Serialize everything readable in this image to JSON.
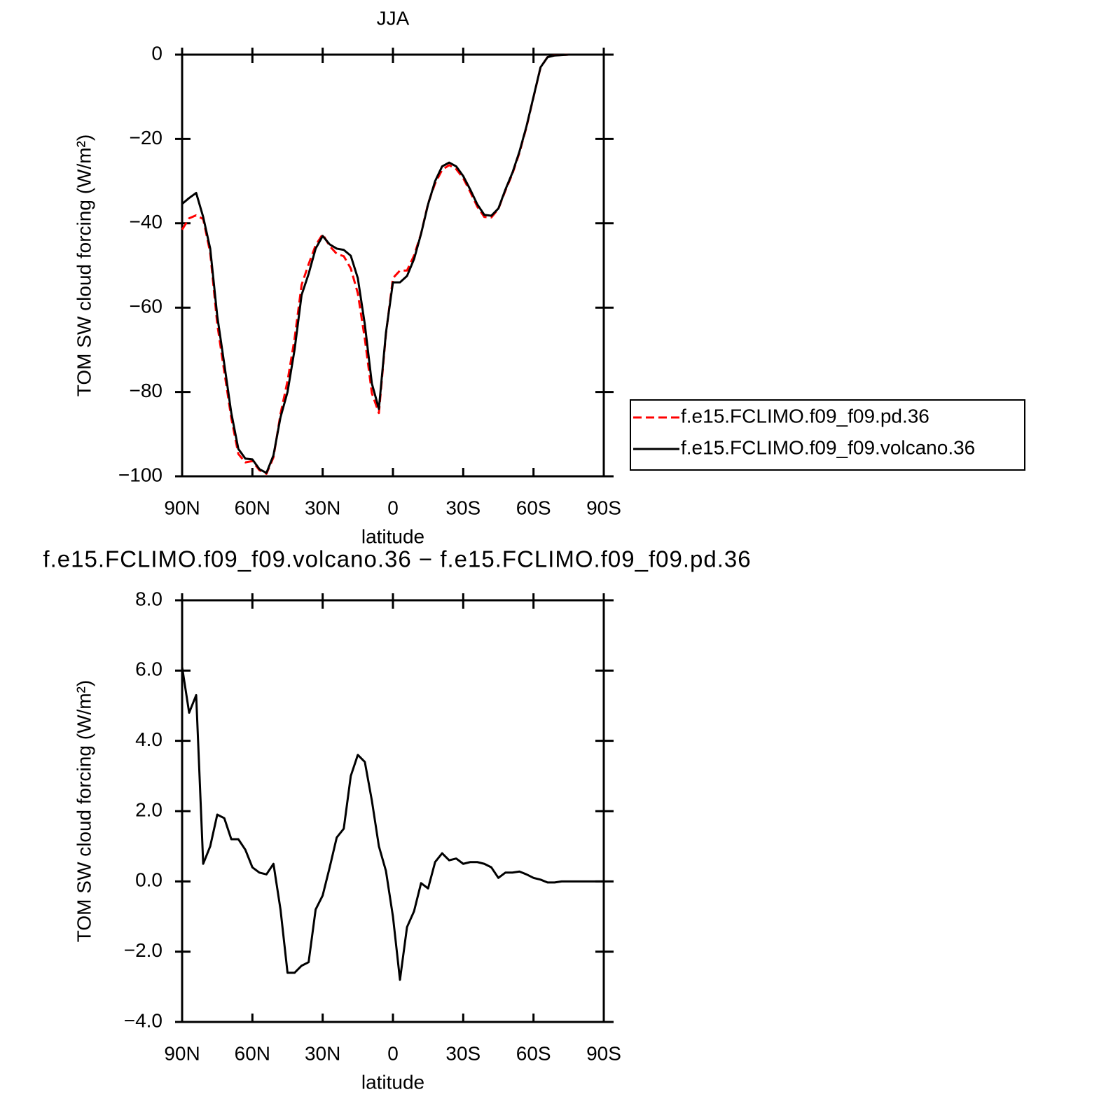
{
  "chart_data": [
    {
      "type": "line",
      "title": "JJA",
      "x_label": "latitude",
      "y_label": "TOM SW cloud forcing (W/m²)",
      "x": [
        90,
        87,
        84,
        81,
        78,
        75,
        72,
        69,
        66,
        63,
        60,
        57,
        54,
        51,
        48,
        45,
        42,
        39,
        36,
        33,
        30,
        27,
        24,
        21,
        18,
        15,
        12,
        9,
        6,
        3,
        0,
        -3,
        -6,
        -9,
        -12,
        -15,
        -18,
        -21,
        -24,
        -27,
        -30,
        -33,
        -36,
        -39,
        -42,
        -45,
        -48,
        -51,
        -54,
        -57,
        -60,
        -63,
        -66,
        -69,
        -72,
        -75,
        -78,
        -81,
        -84,
        -87,
        -90
      ],
      "xlim": [
        90,
        -90
      ],
      "xticks": [
        {
          "value": 90,
          "label": "90N"
        },
        {
          "value": 60,
          "label": "60N"
        },
        {
          "value": 30,
          "label": "30N"
        },
        0,
        {
          "value": -30,
          "label": "30S"
        },
        {
          "value": -60,
          "label": "60S"
        },
        {
          "value": -90,
          "label": "90S"
        }
      ],
      "ylim": [
        -100,
        0
      ],
      "yticks": [
        0,
        {
          "value": -20,
          "label": "−20"
        },
        {
          "value": -40,
          "label": "−40"
        },
        {
          "value": -60,
          "label": "−60"
        },
        {
          "value": -80,
          "label": "−80"
        },
        {
          "value": -100,
          "label": "−100"
        }
      ],
      "legend": "right",
      "series": [
        {
          "name": "f.e15.FCLIMO.f09_f09.pd.36",
          "color": "#ff0000",
          "dash": true,
          "values": [
            -41.5,
            -38.8,
            -38.1,
            -39,
            -47,
            -63.9,
            -75.2,
            -86.2,
            -94.7,
            -96.7,
            -96.4,
            -98.55,
            -99.4,
            -95.5,
            -85.2,
            -77.4,
            -67.4,
            -54.6,
            -49.7,
            -45.2,
            -42.6,
            -45.4,
            -47.25,
            -47.8,
            -50.7,
            -56.6,
            -67.4,
            -80.3,
            -85,
            -66.3,
            -53,
            -51.2,
            -51.2,
            -47.65,
            -42.45,
            -35.3,
            -30.55,
            -27.3,
            -26.2,
            -27.15,
            -29.3,
            -32.55,
            -36.05,
            -38.5,
            -38.6,
            -36.6,
            -32.25,
            -28.25,
            -23.28,
            -17.2,
            -10.1,
            -3.05,
            -0.57,
            -0.17,
            -0.1,
            0,
            0,
            0,
            0,
            0,
            0
          ]
        },
        {
          "name": "f.e15.FCLIMO.f09_f09.volcano.36",
          "color": "#000000",
          "dash": false,
          "values": [
            -35.4,
            -34,
            -32.8,
            -38.5,
            -46,
            -62,
            -73.4,
            -85,
            -93.5,
            -95.8,
            -96,
            -98.3,
            -99.2,
            -95,
            -86,
            -80,
            -70,
            -57,
            -52,
            -46,
            -43,
            -45,
            -46,
            -46.3,
            -47.7,
            -53,
            -64,
            -78,
            -84,
            -66,
            -54,
            -54,
            -52.5,
            -48.5,
            -42.5,
            -35.5,
            -30,
            -26.5,
            -25.6,
            -26.5,
            -28.8,
            -32,
            -35.5,
            -38,
            -38.2,
            -36.5,
            -32,
            -28,
            -23,
            -17,
            -10,
            -3,
            -0.6,
            -0.2,
            -0.1,
            0,
            0,
            0,
            0,
            0,
            0
          ]
        }
      ]
    },
    {
      "type": "line",
      "title": "f.e15.FCLIMO.f09_f09.volcano.36 − f.e15.FCLIMO.f09_f09.pd.36",
      "x_label": "latitude",
      "y_label": "TOM SW cloud forcing (W/m²)",
      "x": [
        90,
        87,
        84,
        81,
        78,
        75,
        72,
        69,
        66,
        63,
        60,
        57,
        54,
        51,
        48,
        45,
        42,
        39,
        36,
        33,
        30,
        27,
        24,
        21,
        18,
        15,
        12,
        9,
        6,
        3,
        0,
        -3,
        -6,
        -9,
        -12,
        -15,
        -18,
        -21,
        -24,
        -27,
        -30,
        -33,
        -36,
        -39,
        -42,
        -45,
        -48,
        -51,
        -54,
        -57,
        -60,
        -63,
        -66,
        -69,
        -72,
        -75,
        -78,
        -81,
        -84,
        -87,
        -90
      ],
      "xlim": [
        90,
        -90
      ],
      "xticks": [
        {
          "value": 90,
          "label": "90N"
        },
        {
          "value": 60,
          "label": "60N"
        },
        {
          "value": 30,
          "label": "30N"
        },
        0,
        {
          "value": -30,
          "label": "30S"
        },
        {
          "value": -60,
          "label": "60S"
        },
        {
          "value": -90,
          "label": "90S"
        }
      ],
      "ylim": [
        -4,
        8
      ],
      "yticks": [
        {
          "value": 8,
          "label": "8.0"
        },
        {
          "value": 6,
          "label": "6.0"
        },
        {
          "value": 4,
          "label": "4.0"
        },
        {
          "value": 2,
          "label": "2.0"
        },
        {
          "value": 0,
          "label": "0.0"
        },
        {
          "value": -2,
          "label": "−2.0"
        },
        {
          "value": -4,
          "label": "−4.0"
        }
      ],
      "series": [
        {
          "color": "#000000",
          "dash": false,
          "values": [
            6.1,
            4.8,
            5.3,
            0.5,
            1.0,
            1.9,
            1.8,
            1.2,
            1.2,
            0.9,
            0.4,
            0.25,
            0.2,
            0.5,
            -0.8,
            -2.6,
            -2.6,
            -2.4,
            -2.3,
            -0.8,
            -0.4,
            0.4,
            1.25,
            1.5,
            3.0,
            3.6,
            3.4,
            2.3,
            1.0,
            0.3,
            -1.0,
            -2.8,
            -1.3,
            -0.85,
            -0.05,
            -0.2,
            0.55,
            0.8,
            0.6,
            0.65,
            0.5,
            0.55,
            0.55,
            0.5,
            0.4,
            0.1,
            0.25,
            0.25,
            0.28,
            0.2,
            0.1,
            0.05,
            -0.03,
            -0.03,
            0,
            0,
            0,
            0,
            0,
            0,
            0
          ]
        }
      ]
    }
  ]
}
